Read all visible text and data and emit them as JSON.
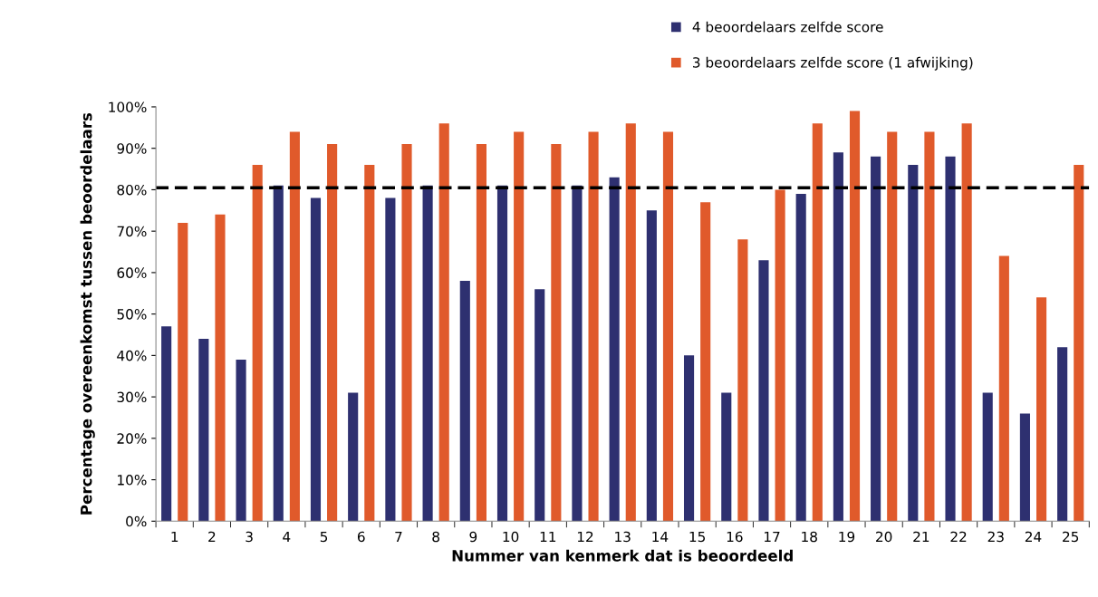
{
  "chart_data": {
    "type": "bar",
    "xlabel": "Nummer van kenmerk dat is beoordeeld",
    "ylabel": "Percentage overeenkomst tussen beoordelaars",
    "categories": [
      "1",
      "2",
      "3",
      "4",
      "5",
      "6",
      "7",
      "8",
      "9",
      "10",
      "11",
      "12",
      "13",
      "14",
      "15",
      "16",
      "17",
      "18",
      "19",
      "20",
      "21",
      "22",
      "23",
      "24",
      "25"
    ],
    "series": [
      {
        "name": "4 beoordelaars zelfde score",
        "color": "#2e3070",
        "values": [
          47,
          44,
          39,
          81,
          78,
          31,
          78,
          81,
          58,
          81,
          56,
          81,
          83,
          75,
          40,
          31,
          63,
          79,
          89,
          88,
          86,
          88,
          31,
          26,
          42
        ]
      },
      {
        "name": "3 beoordelaars zelfde score (1 afwijking)",
        "color": "#e05a2b",
        "values": [
          72,
          74,
          86,
          94,
          91,
          86,
          91,
          96,
          91,
          94,
          91,
          94,
          96,
          94,
          77,
          68,
          80,
          96,
          99,
          94,
          94,
          96,
          64,
          54,
          86
        ]
      }
    ],
    "ylim": [
      0,
      100
    ],
    "yticks": [
      {
        "value": 0,
        "label": "0%"
      },
      {
        "value": 10,
        "label": "10%"
      },
      {
        "value": 20,
        "label": "20%"
      },
      {
        "value": 30,
        "label": "30%"
      },
      {
        "value": 40,
        "label": "40%"
      },
      {
        "value": 50,
        "label": "50%"
      },
      {
        "value": 60,
        "label": "60%"
      },
      {
        "value": 70,
        "label": "70%"
      },
      {
        "value": 80,
        "label": "80%"
      },
      {
        "value": 90,
        "label": "90%"
      },
      {
        "value": 100,
        "label": "100%"
      }
    ],
    "ref_lines": [
      {
        "axis": "y",
        "value": 80.5,
        "color": "#000000",
        "line_style": "dashed"
      }
    ],
    "grid": false,
    "legend": "top right"
  }
}
